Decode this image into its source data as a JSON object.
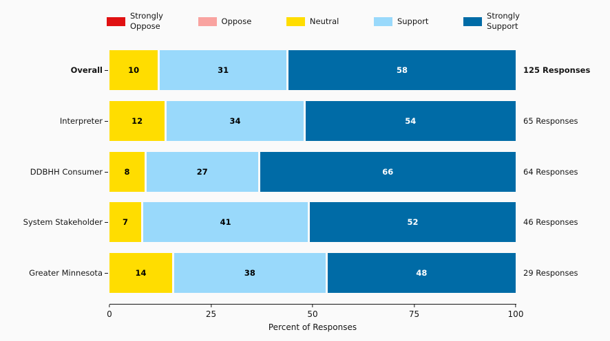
{
  "figure": {
    "background_color": "#fafafa",
    "text_color": "#141414"
  },
  "legend": {
    "items": [
      {
        "key": "strongly-oppose",
        "label": "Strongly\nOppose",
        "color": "#e01112"
      },
      {
        "key": "oppose",
        "label": "Oppose",
        "color": "#f9a3a0"
      },
      {
        "key": "neutral",
        "label": "Neutral",
        "color": "#ffdd00"
      },
      {
        "key": "support",
        "label": "Support",
        "color": "#99d9fb"
      },
      {
        "key": "strongly-support",
        "label": "Strongly\nSupport",
        "color": "#006ba6"
      }
    ]
  },
  "chart_data": {
    "type": "bar",
    "orientation": "horizontal",
    "stacked": true,
    "title": "",
    "xlabel": "Percent of Responses",
    "ylabel": "",
    "xlim": [
      0,
      100
    ],
    "xticks": [
      0,
      25,
      50,
      75,
      100
    ],
    "grid": false,
    "legend_position": "top",
    "categories": [
      "Overall",
      "Interpreter",
      "DDBHH Consumer",
      "System Stakeholder",
      "Greater Minnesota"
    ],
    "category_emphasis": [
      true,
      false,
      false,
      false,
      false
    ],
    "row_annotations": [
      "125 Responses",
      "65 Responses",
      "64 Responses",
      "46 Responses",
      "29 Responses"
    ],
    "series": [
      {
        "name": "Strongly Oppose",
        "color": "#e01112",
        "label_color": "#000000",
        "values": [
          0,
          0,
          0,
          0,
          0
        ]
      },
      {
        "name": "Oppose",
        "color": "#f9a3a0",
        "label_color": "#000000",
        "values": [
          0,
          0,
          0,
          0,
          0
        ]
      },
      {
        "name": "Neutral",
        "color": "#ffdd00",
        "label_color": "#000000",
        "values": [
          10,
          12,
          8,
          7,
          14
        ]
      },
      {
        "name": "Support",
        "color": "#99d9fb",
        "label_color": "#000000",
        "values": [
          31,
          34,
          27,
          41,
          38
        ]
      },
      {
        "name": "Strongly Support",
        "color": "#006ba6",
        "label_color": "#ffffff",
        "values": [
          58,
          54,
          66,
          52,
          48
        ]
      }
    ]
  }
}
